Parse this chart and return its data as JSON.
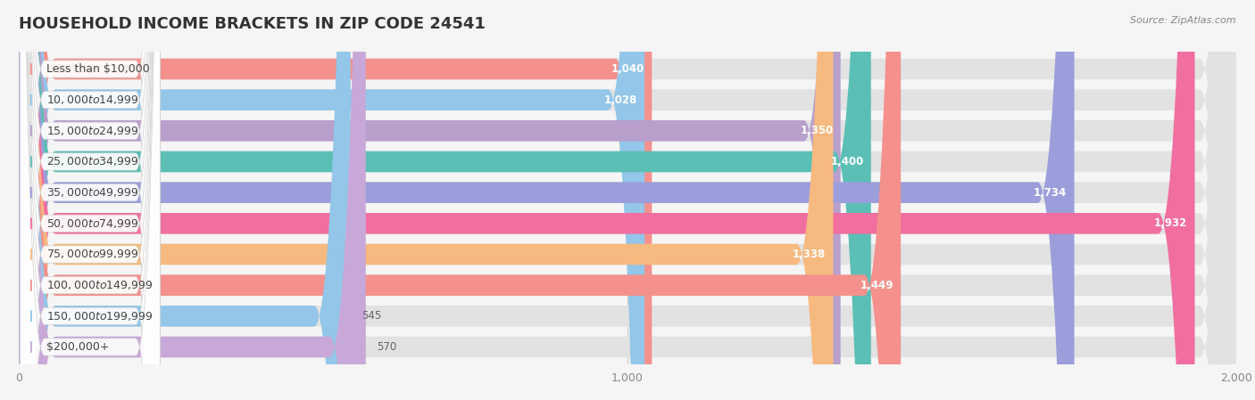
{
  "title": "HOUSEHOLD INCOME BRACKETS IN ZIP CODE 24541",
  "source": "Source: ZipAtlas.com",
  "categories": [
    "Less than $10,000",
    "$10,000 to $14,999",
    "$15,000 to $24,999",
    "$25,000 to $34,999",
    "$35,000 to $49,999",
    "$50,000 to $74,999",
    "$75,000 to $99,999",
    "$100,000 to $149,999",
    "$150,000 to $199,999",
    "$200,000+"
  ],
  "values": [
    1040,
    1028,
    1350,
    1400,
    1734,
    1932,
    1338,
    1449,
    545,
    570
  ],
  "bar_colors": [
    "#F4918C",
    "#93C6E8",
    "#B89FCC",
    "#5BBFB5",
    "#9B9EDA",
    "#F16FA0",
    "#F6BA80",
    "#F4918C",
    "#93C6E8",
    "#C8A8D8"
  ],
  "value_inside": [
    true,
    true,
    true,
    true,
    true,
    true,
    true,
    true,
    false,
    false
  ],
  "value_colors_inside": [
    "white",
    "white",
    "white",
    "white",
    "white",
    "white",
    "white",
    "white",
    "#666666",
    "#666666"
  ],
  "xlim": [
    0,
    2000
  ],
  "xticks": [
    0,
    1000,
    2000
  ],
  "background_color": "#f5f5f5",
  "bar_bg_color": "#e2e2e2",
  "title_fontsize": 13,
  "label_fontsize": 9,
  "value_fontsize": 8.5
}
